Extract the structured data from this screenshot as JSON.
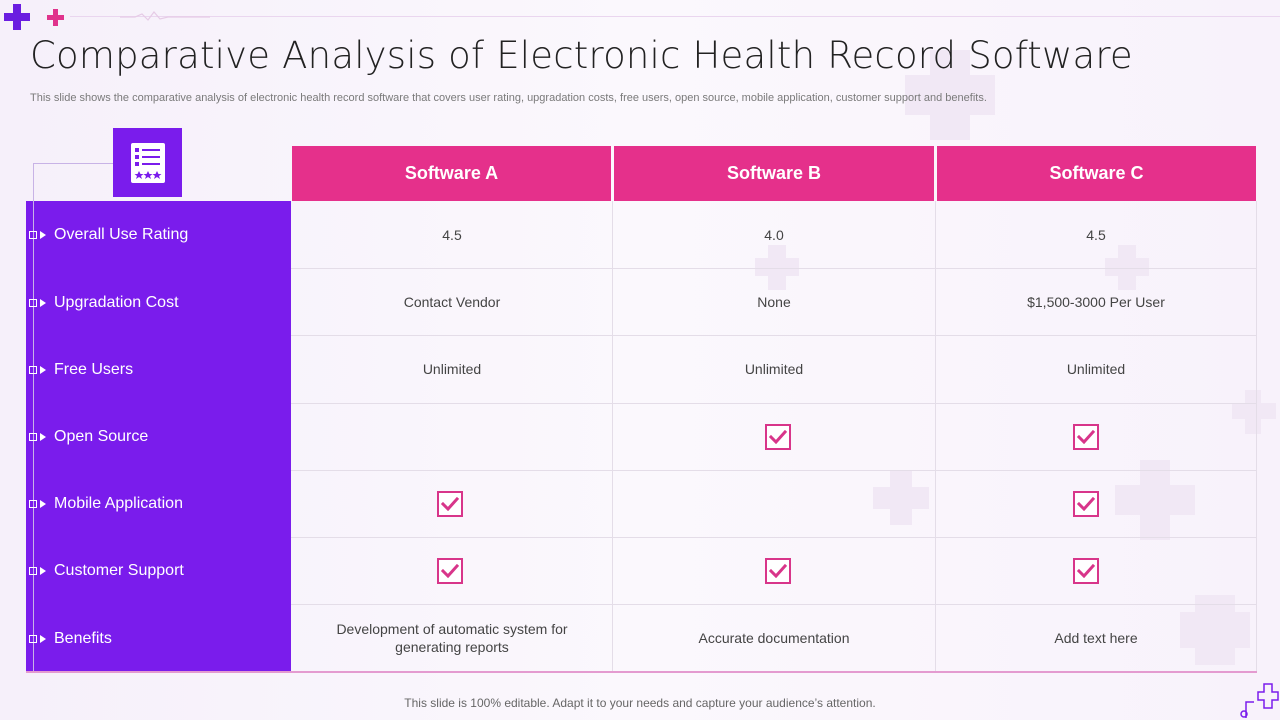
{
  "title": "Comparative Analysis of Electronic Health Record Software",
  "subtitle": "This slide shows the comparative analysis of electronic health record software that covers user rating, upgradation costs, free users, open source, mobile application, customer support and benefits.",
  "header_icon": "checklist-icon",
  "columns": [
    "Software A",
    "Software B",
    "Software C"
  ],
  "rows": [
    {
      "label": "Overall Use Rating",
      "cells": [
        {
          "text": "4.5"
        },
        {
          "text": "4.0"
        },
        {
          "text": "4.5"
        }
      ]
    },
    {
      "label": "Upgradation Cost",
      "cells": [
        {
          "text": "Contact Vendor"
        },
        {
          "text": "None"
        },
        {
          "text": "$1,500-3000 Per User"
        }
      ]
    },
    {
      "label": "Free Users",
      "cells": [
        {
          "text": "Unlimited"
        },
        {
          "text": "Unlimited"
        },
        {
          "text": "Unlimited"
        }
      ]
    },
    {
      "label": "Open Source",
      "cells": [
        {
          "check": false
        },
        {
          "check": true
        },
        {
          "check": true
        }
      ]
    },
    {
      "label": "Mobile Application",
      "cells": [
        {
          "check": true
        },
        {
          "check": false
        },
        {
          "check": true
        }
      ]
    },
    {
      "label": "Customer Support",
      "cells": [
        {
          "check": true
        },
        {
          "check": true
        },
        {
          "check": true
        }
      ]
    },
    {
      "label": "Benefits",
      "cells": [
        {
          "text": "Development of automatic system for generating reports"
        },
        {
          "text": "Accurate documentation"
        },
        {
          "text": "Add text here"
        }
      ]
    }
  ],
  "footer": "This slide is 100% editable. Adapt it to your needs and capture your audience’s attention.",
  "colors": {
    "sidebar": "#7a1cec",
    "header": "#e5308b",
    "check": "#d8358a"
  }
}
